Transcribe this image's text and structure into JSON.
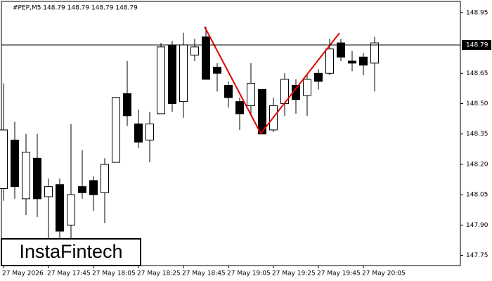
{
  "chart_data": {
    "type": "candlestick",
    "title": "#PEP,M5  148.79 148.79 148.79 148.79",
    "categories": [
      "27 May 2026",
      null,
      null,
      null,
      "27 May 17:45",
      null,
      null,
      null,
      "27 May 18:05",
      null,
      null,
      null,
      "27 May 18:25",
      null,
      null,
      null,
      "27 May 18:45",
      null,
      null,
      null,
      "27 May 19:05",
      null,
      null,
      null,
      "27 May 19:25",
      null,
      null,
      null,
      "27 May 19:45",
      null,
      null,
      null,
      "27 May 20:05",
      null
    ],
    "open": [
      148.08,
      148.32,
      148.03,
      148.23,
      148.04,
      148.1,
      147.9,
      148.09,
      148.12,
      148.06,
      148.21,
      148.55,
      148.4,
      148.32,
      148.45,
      148.79,
      148.51,
      148.74,
      148.83,
      148.68,
      148.59,
      148.51,
      148.49,
      148.57,
      148.37,
      148.5,
      148.59,
      148.54,
      148.65,
      148.65,
      148.8,
      148.71,
      148.73,
      148.7
    ],
    "high": [
      148.6,
      148.41,
      148.35,
      148.35,
      148.13,
      148.13,
      148.4,
      148.27,
      148.14,
      148.23,
      148.53,
      148.71,
      148.47,
      148.46,
      148.8,
      148.81,
      148.85,
      148.82,
      148.88,
      148.7,
      148.61,
      148.53,
      148.7,
      148.57,
      148.53,
      148.65,
      148.62,
      148.64,
      148.67,
      148.82,
      148.82,
      148.76,
      148.75,
      148.83
    ],
    "low": [
      148.02,
      148.03,
      147.95,
      147.94,
      147.83,
      147.79,
      147.83,
      148.03,
      147.97,
      147.91,
      148.21,
      148.39,
      148.28,
      148.21,
      148.45,
      148.46,
      148.43,
      148.71,
      148.62,
      148.56,
      148.48,
      148.37,
      148.44,
      148.35,
      148.36,
      148.44,
      148.45,
      148.44,
      148.57,
      148.64,
      148.71,
      148.66,
      148.64,
      148.56
    ],
    "close": [
      148.37,
      148.09,
      148.26,
      148.03,
      148.09,
      147.87,
      148.05,
      148.06,
      148.05,
      148.2,
      148.53,
      148.44,
      148.31,
      148.4,
      148.78,
      148.5,
      148.79,
      148.78,
      148.62,
      148.65,
      148.53,
      148.45,
      148.6,
      148.35,
      148.49,
      148.62,
      148.52,
      148.62,
      148.61,
      148.77,
      148.73,
      148.7,
      148.69,
      148.8
    ],
    "up_color": "#ffffff",
    "down_color": "#000000",
    "current_price": 148.79,
    "ylim": [
      147.7,
      149.005
    ],
    "yticks": [
      148.95,
      148.65,
      {
        "value": 148.5,
        "label": "148.50"
      },
      148.35,
      {
        "value": 148.2,
        "label": "148.20"
      },
      148.05,
      {
        "value": 147.9,
        "label": "147.90"
      },
      147.75
    ],
    "watermark": "InstaFintech"
  }
}
